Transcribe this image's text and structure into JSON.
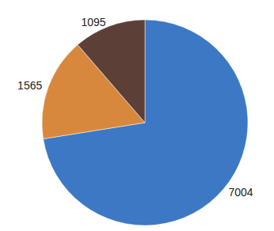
{
  "chart_data": {
    "type": "pie",
    "values": [
      7004,
      1565,
      1095
    ],
    "colors": [
      "#3c78c4",
      "#d8883c",
      "#5c4038"
    ],
    "data_labels": true,
    "legend": false
  }
}
